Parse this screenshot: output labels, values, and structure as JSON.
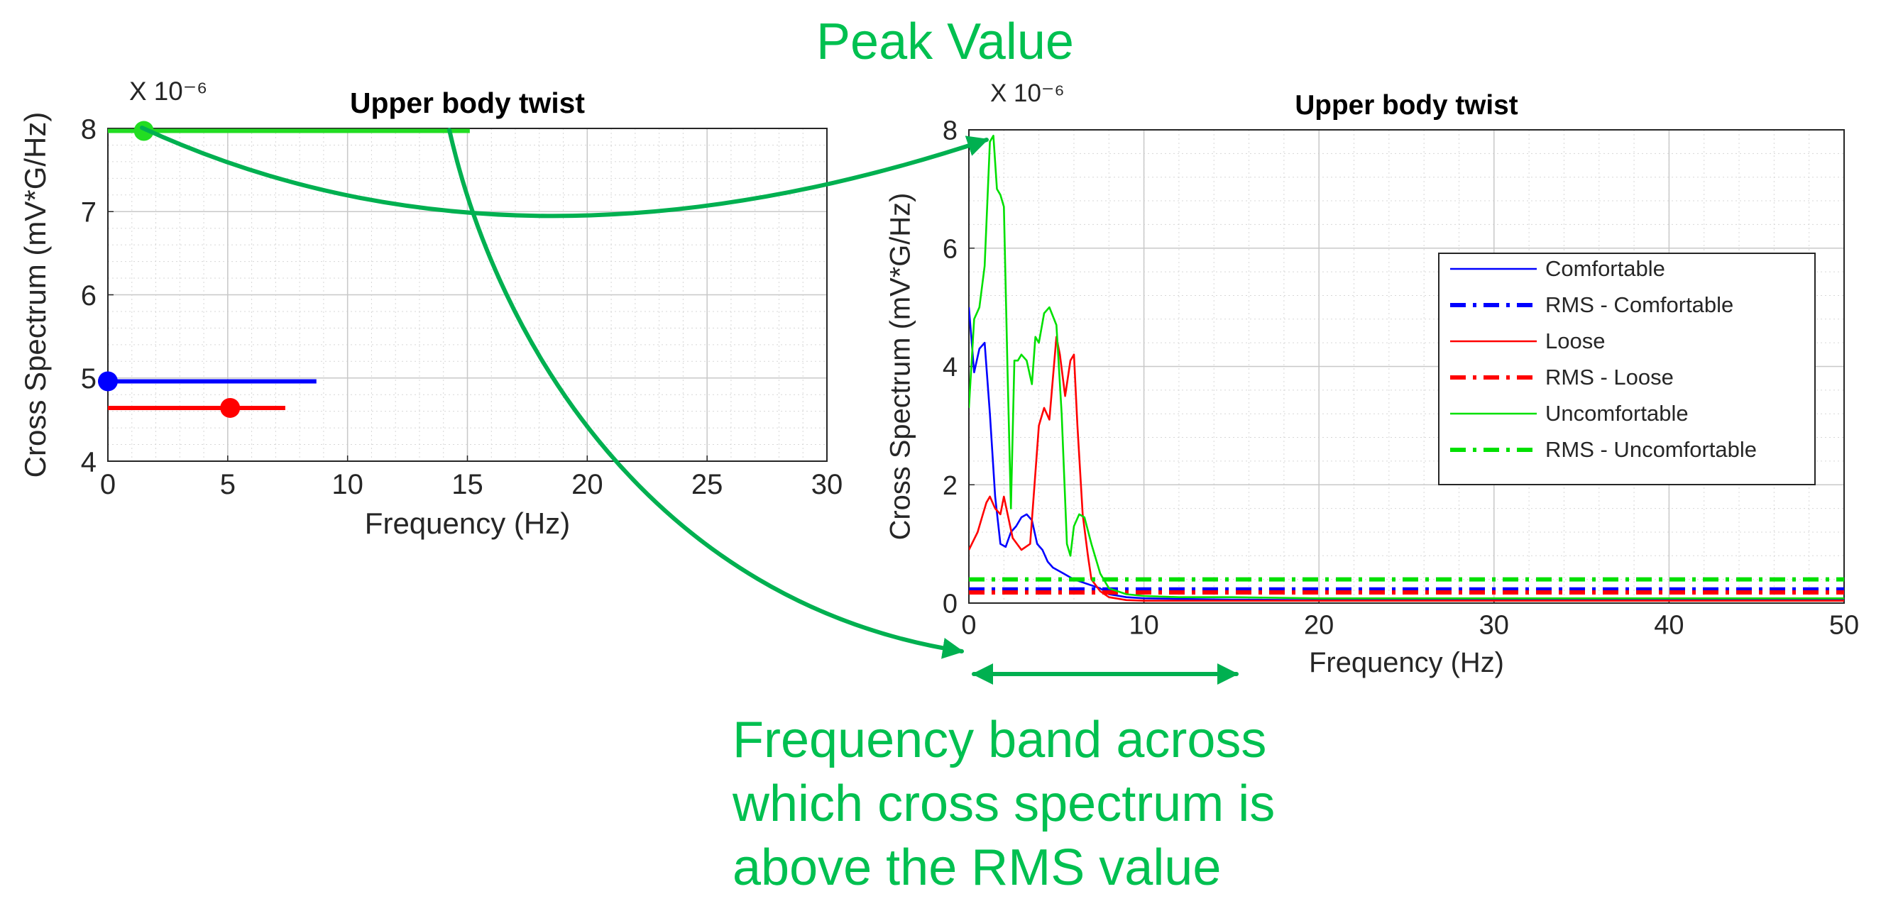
{
  "annotations": {
    "peak_value": "Peak Value",
    "frequency_band": [
      "Frequency band across",
      "which cross spectrum is",
      "above the RMS value"
    ],
    "color": "#00c050"
  },
  "chart_data": [
    {
      "type": "scatter",
      "title": "Upper body twist",
      "exponent_label": "X 10⁻⁶",
      "xlabel": "Frequency (Hz)",
      "ylabel": "Cross Spectrum (mV*G/Hz)",
      "xlim": [
        0,
        30
      ],
      "ylim": [
        4,
        8
      ],
      "xticks": [
        0,
        5,
        10,
        15,
        20,
        25,
        30
      ],
      "yticks": [
        4,
        5,
        6,
        7,
        8
      ],
      "grid": true,
      "series": [
        {
          "color": "#0000ff",
          "point": [
            0,
            4.96
          ],
          "band": [
            0,
            8.7
          ]
        },
        {
          "color": "#ff0000",
          "point": [
            5.1,
            4.64
          ],
          "band": [
            0,
            7.4
          ]
        },
        {
          "color": "#22dd22",
          "point": [
            1.5,
            7.97
          ],
          "band": [
            0,
            15.1
          ]
        }
      ]
    },
    {
      "type": "line",
      "title": "Upper body twist",
      "exponent_label": "X 10⁻⁶",
      "xlabel": "Frequency (Hz)",
      "ylabel": "Cross Spectrum (mV*G/Hz)",
      "xlim": [
        0,
        50
      ],
      "ylim": [
        0,
        8
      ],
      "xticks": [
        0,
        10,
        20,
        30,
        40,
        50
      ],
      "yticks": [
        0,
        2,
        4,
        6,
        8
      ],
      "grid": true,
      "legend": "right",
      "series": [
        {
          "name": "Comfortable",
          "color": "#0000ff",
          "style": "solid",
          "x": [
            0,
            0.3,
            0.6,
            0.9,
            1.2,
            1.5,
            1.8,
            2.1,
            2.4,
            2.7,
            3.0,
            3.3,
            3.6,
            3.9,
            4.2,
            4.5,
            4.8,
            5.1,
            5.4,
            5.7,
            6.0,
            6.5,
            7.0,
            7.5,
            8.0,
            9.0,
            10,
            12,
            15,
            20,
            30,
            40,
            50
          ],
          "y": [
            5.0,
            3.9,
            4.3,
            4.4,
            3.2,
            1.8,
            1.0,
            0.95,
            1.2,
            1.3,
            1.45,
            1.5,
            1.4,
            1.0,
            0.9,
            0.7,
            0.6,
            0.55,
            0.5,
            0.45,
            0.4,
            0.35,
            0.3,
            0.25,
            0.15,
            0.1,
            0.08,
            0.07,
            0.06,
            0.05,
            0.05,
            0.05,
            0.05
          ]
        },
        {
          "name": "RMS - Comfortable",
          "color": "#0000ff",
          "style": "dashdot",
          "x": [
            0,
            50
          ],
          "y": [
            0.23,
            0.23
          ]
        },
        {
          "name": "Loose",
          "color": "#ff0000",
          "style": "solid",
          "x": [
            0,
            0.5,
            0.8,
            1.0,
            1.2,
            1.5,
            1.8,
            2.0,
            2.5,
            3.0,
            3.5,
            4.0,
            4.3,
            4.6,
            5.0,
            5.2,
            5.5,
            5.8,
            6.0,
            6.2,
            6.5,
            6.8,
            7.0,
            7.5,
            8.0,
            9.0,
            10,
            15,
            20,
            30,
            40,
            50
          ],
          "y": [
            0.9,
            1.2,
            1.5,
            1.7,
            1.8,
            1.6,
            1.5,
            1.8,
            1.1,
            0.9,
            1.0,
            3.0,
            3.3,
            3.1,
            4.5,
            4.2,
            3.5,
            4.1,
            4.2,
            3.0,
            1.5,
            0.8,
            0.4,
            0.2,
            0.1,
            0.05,
            0.04,
            0.04,
            0.04,
            0.04,
            0.04,
            0.04
          ]
        },
        {
          "name": "RMS - Loose",
          "color": "#ff0000",
          "style": "dashdot",
          "x": [
            0,
            50
          ],
          "y": [
            0.18,
            0.18
          ]
        },
        {
          "name": "Uncomfortable",
          "color": "#00e000",
          "style": "solid",
          "x": [
            0,
            0.3,
            0.6,
            0.9,
            1.2,
            1.4,
            1.6,
            1.8,
            2.0,
            2.2,
            2.4,
            2.6,
            2.8,
            3.0,
            3.3,
            3.6,
            3.8,
            4.0,
            4.3,
            4.6,
            5.0,
            5.3,
            5.6,
            5.8,
            6.0,
            6.3,
            6.6,
            7.0,
            7.5,
            8.0,
            9.0,
            10,
            12,
            15,
            20,
            30,
            40,
            50
          ],
          "y": [
            3.3,
            4.8,
            5.0,
            5.7,
            7.8,
            7.9,
            7.0,
            6.9,
            6.7,
            4.0,
            1.6,
            4.1,
            4.1,
            4.2,
            4.1,
            3.7,
            4.5,
            4.4,
            4.9,
            5.0,
            4.7,
            3.2,
            1.0,
            0.8,
            1.3,
            1.5,
            1.45,
            1.0,
            0.5,
            0.25,
            0.15,
            0.12,
            0.1,
            0.1,
            0.08,
            0.08,
            0.08,
            0.08
          ]
        },
        {
          "name": "RMS - Uncomfortable",
          "color": "#00e000",
          "style": "dashdot",
          "x": [
            0,
            50
          ],
          "y": [
            0.4,
            0.4
          ]
        }
      ]
    }
  ]
}
